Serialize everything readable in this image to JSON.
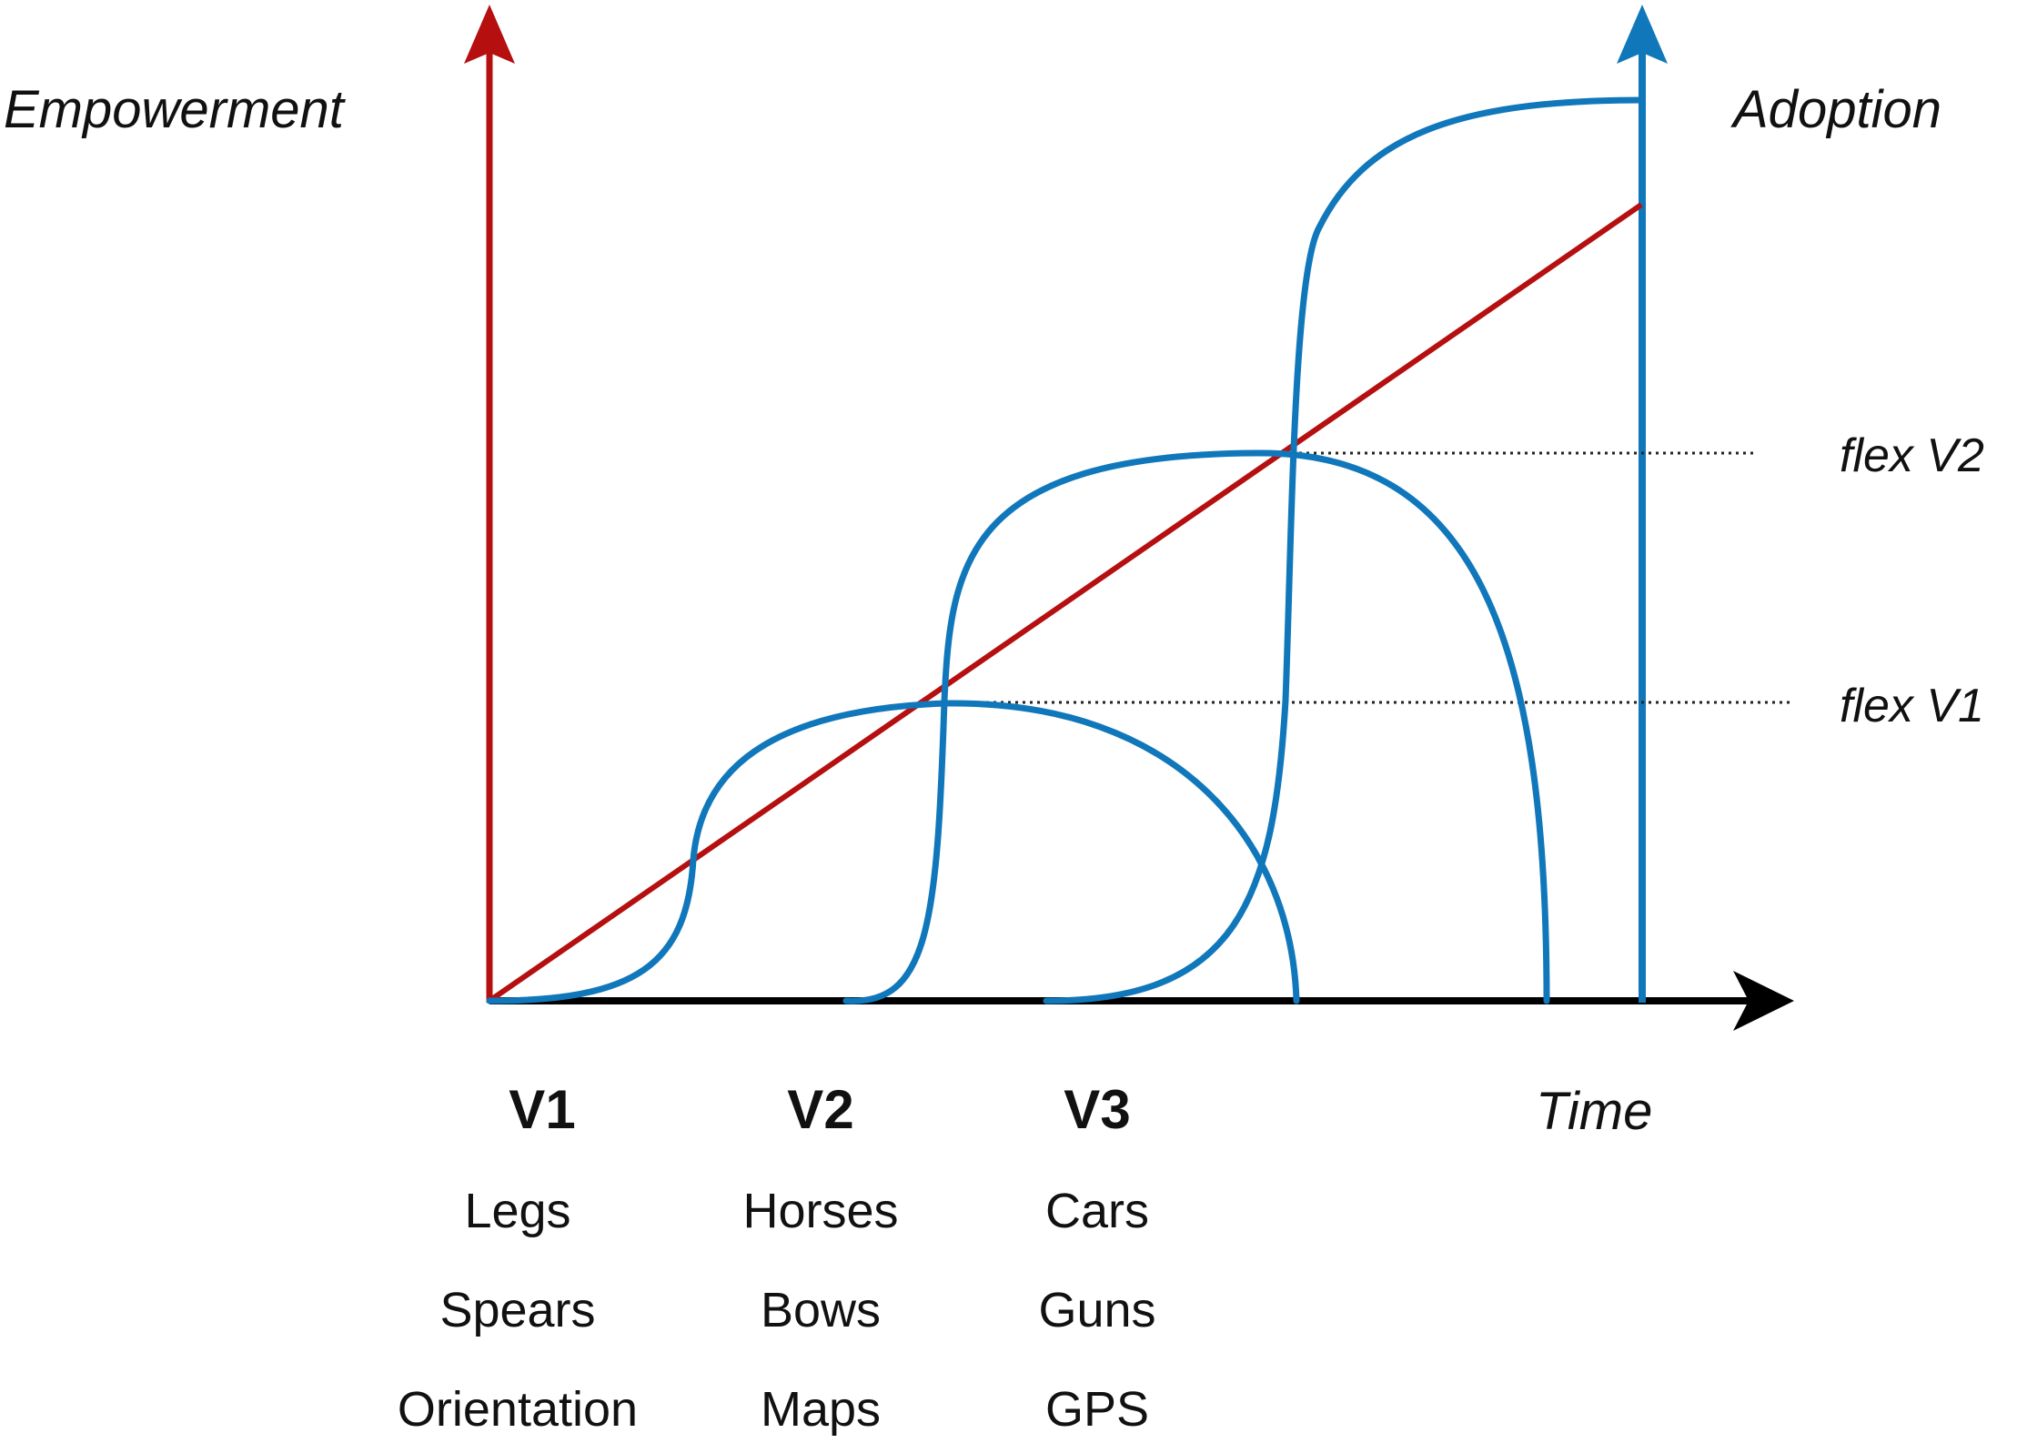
{
  "axes": {
    "left_title": "Empowerment",
    "right_title": "Adoption",
    "x_title": "Time"
  },
  "flex_lines": [
    {
      "label": "flex V1"
    },
    {
      "label": "flex V2"
    }
  ],
  "versions": [
    {
      "heading": "V1",
      "items": [
        "Legs",
        "Spears",
        "Orientation"
      ]
    },
    {
      "heading": "V2",
      "items": [
        "Horses",
        "Bows",
        "Maps"
      ]
    },
    {
      "heading": "V3",
      "items": [
        "Cars",
        "Guns",
        "GPS"
      ]
    }
  ],
  "colors": {
    "empowerment": "#b50f10",
    "adoption": "#1177bb",
    "time_axis": "#000000",
    "guide": "#222222"
  }
}
